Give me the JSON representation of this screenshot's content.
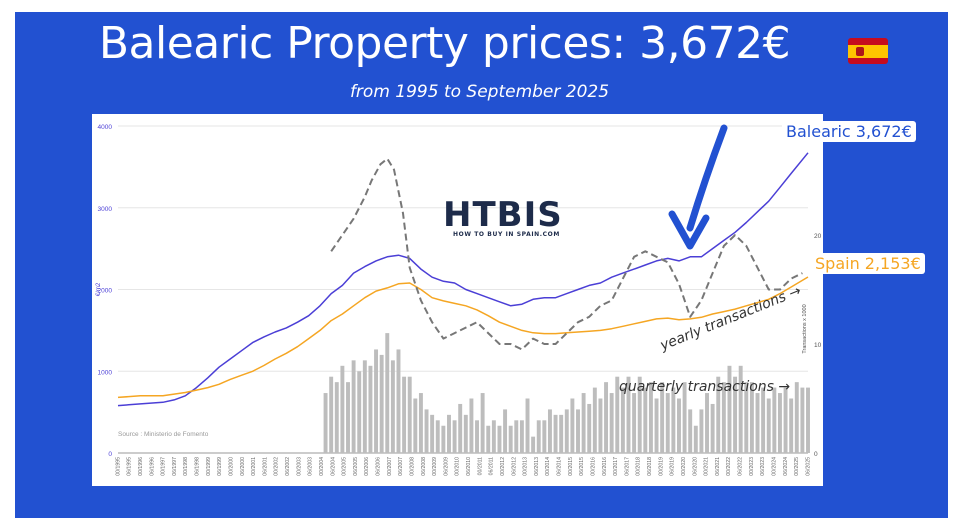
{
  "title": "Balearic Property prices: 3,672€",
  "subtitle": "from 1995 to September 2025",
  "flag_icon": "spain-flag-icon",
  "logo": {
    "name": "HTBIS",
    "tagline": "HOW TO BUY IN SPAIN.COM"
  },
  "callouts": {
    "balearic": "Balearic 3,672€",
    "spain": "Spain 2,153€"
  },
  "annotations": {
    "yearly": "yearly transactions →",
    "quarterly": "quarterly transactions →"
  },
  "colors": {
    "background": "#2251d1",
    "balearic": "#4b3fd6",
    "spain": "#f5a623",
    "yearly": "#777777",
    "quarterly": "#bdbdbd",
    "arrow": "#2251d1"
  },
  "chart_data": {
    "type": "line",
    "ylabel": "€/m2",
    "ylabel_right": "Transactions x 1000",
    "source": "Source : Ministerio de Fomento",
    "ylim": [
      0,
      4000
    ],
    "yticks": [
      "0",
      "1000",
      "2000",
      "3000",
      "4000"
    ],
    "ylim_right": [
      0,
      30
    ],
    "yticks_right": [
      "0",
      "10",
      "20"
    ],
    "xlim": [
      1995.0,
      2025.75
    ],
    "x_tick_labels": [
      "00/1995",
      "06/1995",
      "00/1996",
      "06/1996",
      "00/1997",
      "06/1997",
      "00/1998",
      "06/1998",
      "00/1999",
      "06/1999",
      "00/2000",
      "06/2000",
      "00/2001",
      "06/2001",
      "00/2002",
      "06/2002",
      "00/2003",
      "06/2003",
      "00/2004",
      "06/2004",
      "00/2005",
      "06/2005",
      "00/2006",
      "06/2006",
      "00/2007",
      "06/2007",
      "00/2008",
      "06/2008",
      "00/2009",
      "06/2009",
      "00/2010",
      "06/2010",
      "00/2011",
      "06/2011",
      "00/2012",
      "06/2012",
      "00/2013",
      "06/2013",
      "00/2014",
      "06/2014",
      "00/2015",
      "06/2015",
      "00/2016",
      "06/2016",
      "00/2017",
      "06/2017",
      "00/2018",
      "06/2018",
      "00/2019",
      "06/2019",
      "00/2020",
      "06/2020",
      "00/2021",
      "06/2021",
      "00/2022",
      "06/2022",
      "00/2023",
      "06/2023",
      "00/2024",
      "06/2024",
      "00/2025",
      "06/2025"
    ],
    "series": [
      {
        "name": "Balearic",
        "x": [
          1995.0,
          1996.0,
          1997.0,
          1997.5,
          1998.0,
          1998.5,
          1999.0,
          1999.5,
          2000.0,
          2000.5,
          2001.0,
          2001.5,
          2002.0,
          2002.5,
          2003.0,
          2003.5,
          2004.0,
          2004.5,
          2005.0,
          2005.5,
          2006.0,
          2006.5,
          2007.0,
          2007.5,
          2008.0,
          2008.5,
          2009.0,
          2009.5,
          2010.0,
          2010.5,
          2011.0,
          2011.5,
          2012.0,
          2012.5,
          2013.0,
          2013.5,
          2014.0,
          2014.5,
          2015.0,
          2015.5,
          2016.0,
          2016.5,
          2017.0,
          2017.5,
          2018.0,
          2018.5,
          2019.0,
          2019.5,
          2020.0,
          2020.5,
          2021.0,
          2021.5,
          2022.0,
          2022.5,
          2023.0,
          2023.5,
          2024.0,
          2024.5,
          2025.0,
          2025.75
        ],
        "y": [
          580,
          600,
          620,
          650,
          700,
          800,
          920,
          1050,
          1150,
          1250,
          1350,
          1420,
          1480,
          1530,
          1600,
          1680,
          1800,
          1950,
          2050,
          2200,
          2280,
          2350,
          2400,
          2420,
          2380,
          2250,
          2150,
          2100,
          2080,
          2000,
          1950,
          1900,
          1850,
          1800,
          1820,
          1880,
          1900,
          1900,
          1950,
          2000,
          2050,
          2080,
          2150,
          2200,
          2250,
          2300,
          2350,
          2380,
          2350,
          2400,
          2400,
          2500,
          2600,
          2700,
          2820,
          2950,
          3080,
          3250,
          3420,
          3672
        ]
      },
      {
        "name": "Spain",
        "x": [
          1995.0,
          1996.0,
          1997.0,
          1997.5,
          1998.0,
          1998.5,
          1999.0,
          1999.5,
          2000.0,
          2000.5,
          2001.0,
          2001.5,
          2002.0,
          2002.5,
          2003.0,
          2003.5,
          2004.0,
          2004.5,
          2005.0,
          2005.5,
          2006.0,
          2006.5,
          2007.0,
          2007.5,
          2008.0,
          2008.5,
          2009.0,
          2009.5,
          2010.0,
          2010.5,
          2011.0,
          2011.5,
          2012.0,
          2012.5,
          2013.0,
          2013.5,
          2014.0,
          2014.5,
          2015.0,
          2015.5,
          2016.0,
          2016.5,
          2017.0,
          2017.5,
          2018.0,
          2018.5,
          2019.0,
          2019.5,
          2020.0,
          2020.5,
          2021.0,
          2021.5,
          2022.0,
          2022.5,
          2023.0,
          2023.5,
          2024.0,
          2024.5,
          2025.0,
          2025.75
        ],
        "y": [
          680,
          700,
          700,
          720,
          740,
          770,
          800,
          840,
          900,
          950,
          1000,
          1070,
          1150,
          1220,
          1300,
          1400,
          1500,
          1620,
          1700,
          1800,
          1900,
          1980,
          2020,
          2070,
          2080,
          2000,
          1900,
          1860,
          1830,
          1800,
          1750,
          1680,
          1600,
          1550,
          1500,
          1470,
          1460,
          1460,
          1470,
          1480,
          1490,
          1500,
          1520,
          1550,
          1580,
          1610,
          1640,
          1650,
          1630,
          1640,
          1660,
          1700,
          1730,
          1760,
          1800,
          1840,
          1880,
          1950,
          2030,
          2153
        ]
      },
      {
        "name": "yearly transactions",
        "axis": "right",
        "x": [
          2004.5,
          2005.0,
          2005.5,
          2006.0,
          2006.3,
          2006.7,
          2007.0,
          2007.3,
          2007.7,
          2008.0,
          2008.5,
          2009.0,
          2009.5,
          2010.0,
          2010.5,
          2011.0,
          2011.5,
          2012.0,
          2012.5,
          2013.0,
          2013.5,
          2014.0,
          2014.5,
          2015.0,
          2015.5,
          2016.0,
          2016.5,
          2017.0,
          2017.5,
          2018.0,
          2018.5,
          2019.0,
          2019.5,
          2020.0,
          2020.5,
          2021.0,
          2021.5,
          2022.0,
          2022.5,
          2023.0,
          2023.5,
          2024.0,
          2024.5,
          2025.0,
          2025.5
        ],
        "y": [
          18.5,
          20,
          21.5,
          23.5,
          25,
          26.5,
          27,
          26,
          22,
          17,
          14,
          12,
          10.5,
          11,
          11.5,
          12,
          11,
          10,
          10,
          9.5,
          10.5,
          10,
          10,
          11,
          12,
          12.5,
          13.5,
          14,
          16,
          18,
          18.5,
          18,
          17.5,
          15.5,
          12.5,
          14,
          16.5,
          19,
          20,
          19,
          17,
          15,
          15,
          16,
          16.5
        ]
      }
    ],
    "bars": {
      "name": "quarterly transactions",
      "axis": "right",
      "x_start": 2004.25,
      "x_step": 0.25,
      "values": [
        5.5,
        7.0,
        6.5,
        8.0,
        6.5,
        8.5,
        7.5,
        8.5,
        8.0,
        9.5,
        9.0,
        11.0,
        8.5,
        9.5,
        7.0,
        7.0,
        5.0,
        5.5,
        4.0,
        3.5,
        3.0,
        2.5,
        3.5,
        3.0,
        4.5,
        3.5,
        5.0,
        3.0,
        5.5,
        2.5,
        3.0,
        2.5,
        4.0,
        2.5,
        3.0,
        3.0,
        5.0,
        1.5,
        3.0,
        3.0,
        4.0,
        3.5,
        3.5,
        4.0,
        5.0,
        4.0,
        5.5,
        4.5,
        6.0,
        5.0,
        6.5,
        5.5,
        7.0,
        6.0,
        7.0,
        5.5,
        7.0,
        6.0,
        6.5,
        5.0,
        6.5,
        5.5,
        6.0,
        5.0,
        6.5,
        4.0,
        2.5,
        4.0,
        5.5,
        4.5,
        7.0,
        6.5,
        8.0,
        7.0,
        8.0,
        6.5,
        6.5,
        5.5,
        6.0,
        5.0,
        6.0,
        5.5,
        6.0,
        5.0,
        6.5,
        6.0,
        6.0
      ]
    }
  }
}
